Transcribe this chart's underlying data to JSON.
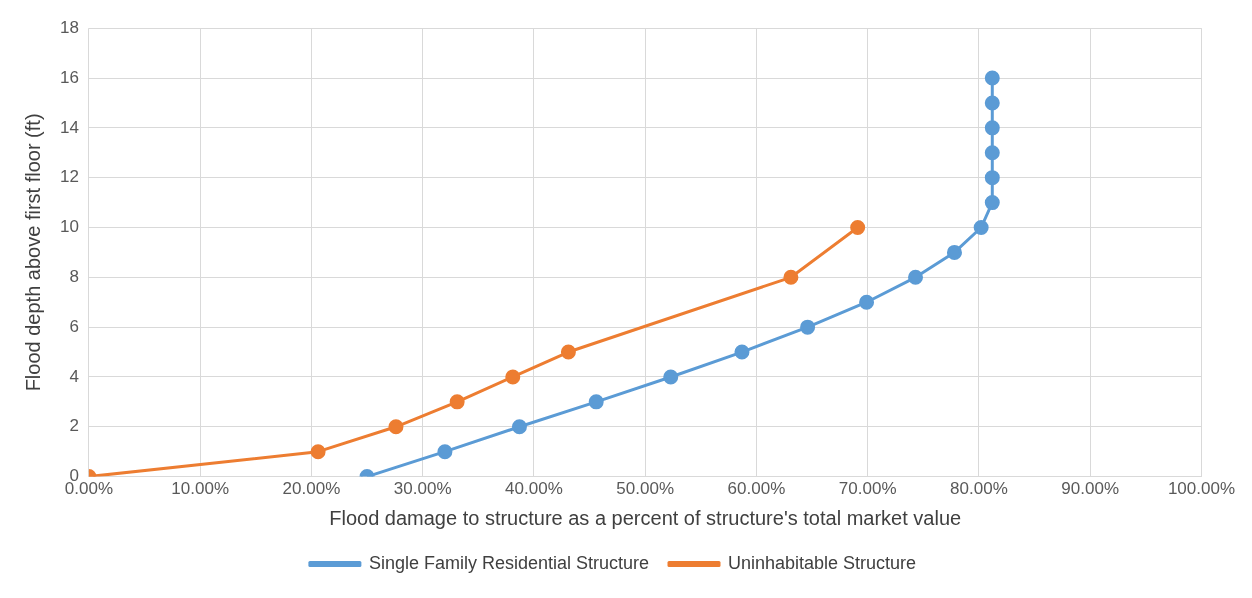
{
  "chart_data": {
    "type": "line",
    "xlabel": "Flood damage to structure as a percent of structure's total market value",
    "ylabel": "Flood depth above first floor (ft)",
    "series": [
      {
        "name": "Single Family Residential Structure",
        "color": "#5b9bd5",
        "x": [
          25,
          32,
          38.7,
          45.6,
          52.3,
          58.7,
          64.6,
          69.9,
          74.3,
          77.8,
          80.2,
          81.2,
          81.2,
          81.2,
          81.2,
          81.2,
          81.2
        ],
        "values": [
          0,
          1,
          2,
          3,
          4,
          5,
          6,
          7,
          8,
          9,
          10,
          11,
          12,
          13,
          14,
          15,
          16
        ]
      },
      {
        "name": "Uninhabitable Structure",
        "color": "#ed7d31",
        "x": [
          0,
          20.6,
          27.6,
          33.1,
          38.1,
          43.1,
          63.1,
          69.1
        ],
        "values": [
          0,
          1,
          2,
          3,
          4,
          5,
          8,
          10
        ]
      }
    ],
    "xlim": [
      0,
      100
    ],
    "xticks": [
      {
        "value": 0,
        "label": "0.00%"
      },
      {
        "value": 10,
        "label": "10.00%"
      },
      {
        "value": 20,
        "label": "20.00%"
      },
      {
        "value": 30,
        "label": "30.00%"
      },
      {
        "value": 40,
        "label": "40.00%"
      },
      {
        "value": 50,
        "label": "50.00%"
      },
      {
        "value": 60,
        "label": "60.00%"
      },
      {
        "value": 70,
        "label": "70.00%"
      },
      {
        "value": 80,
        "label": "80.00%"
      },
      {
        "value": 90,
        "label": "90.00%"
      },
      {
        "value": 100,
        "label": "100.00%"
      }
    ],
    "ylim": [
      0,
      18
    ],
    "yticks": [
      0,
      2,
      4,
      6,
      8,
      10,
      12,
      14,
      16,
      18
    ],
    "grid": true,
    "legend": "bottom",
    "marker": "circle",
    "line_style": "solid"
  }
}
